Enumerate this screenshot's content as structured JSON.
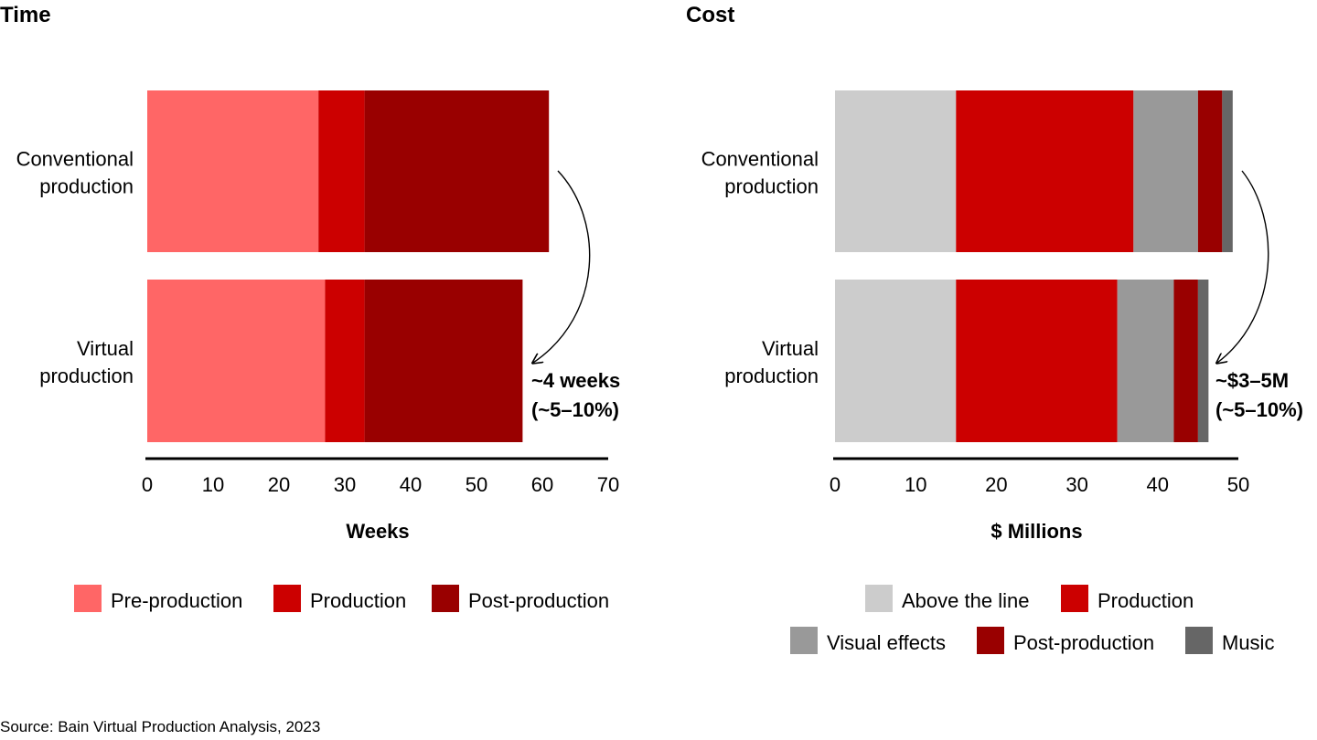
{
  "source": "Source: Bain Virtual Production Analysis, 2023",
  "chart_data": [
    {
      "type": "bar",
      "orientation": "horizontal",
      "stacked": true,
      "title": "Time",
      "xlabel": "Weeks",
      "xlim": [
        0,
        70
      ],
      "xticks": [
        0,
        10,
        20,
        30,
        40,
        50,
        60,
        70
      ],
      "categories": [
        [
          "Conventional",
          "production"
        ],
        [
          "Virtual",
          "production"
        ]
      ],
      "series": [
        {
          "name": "Pre-production",
          "color": "#ff6666",
          "values": [
            26,
            27
          ]
        },
        {
          "name": "Production",
          "color": "#cc0000",
          "values": [
            7,
            6
          ]
        },
        {
          "name": "Post-production",
          "color": "#990000",
          "values": [
            28,
            24
          ]
        }
      ],
      "annotation": [
        "~4 weeks",
        "(~5–10%)"
      ],
      "legend_rows": [
        [
          0,
          1,
          2
        ]
      ]
    },
    {
      "type": "bar",
      "orientation": "horizontal",
      "stacked": true,
      "title": "Cost",
      "xlabel": "$ Millions",
      "xlim": [
        0,
        50
      ],
      "xticks": [
        0,
        10,
        20,
        30,
        40,
        50
      ],
      "categories": [
        [
          "Conventional",
          "production"
        ],
        [
          "Virtual",
          "production"
        ]
      ],
      "series": [
        {
          "name": "Above the line",
          "color": "#cccccc",
          "values": [
            15,
            15
          ]
        },
        {
          "name": "Production",
          "color": "#cc0000",
          "values": [
            22,
            20
          ]
        },
        {
          "name": "Visual effects",
          "color": "#999999",
          "values": [
            8,
            7
          ]
        },
        {
          "name": "Post-production",
          "color": "#990000",
          "values": [
            3,
            3
          ]
        },
        {
          "name": "Music",
          "color": "#666666",
          "values": [
            1.3,
            1.3
          ]
        }
      ],
      "annotation": [
        "~$3–5M",
        "(~5–10%)"
      ],
      "legend_rows": [
        [
          0,
          1
        ],
        [
          2,
          3,
          4
        ]
      ]
    }
  ]
}
